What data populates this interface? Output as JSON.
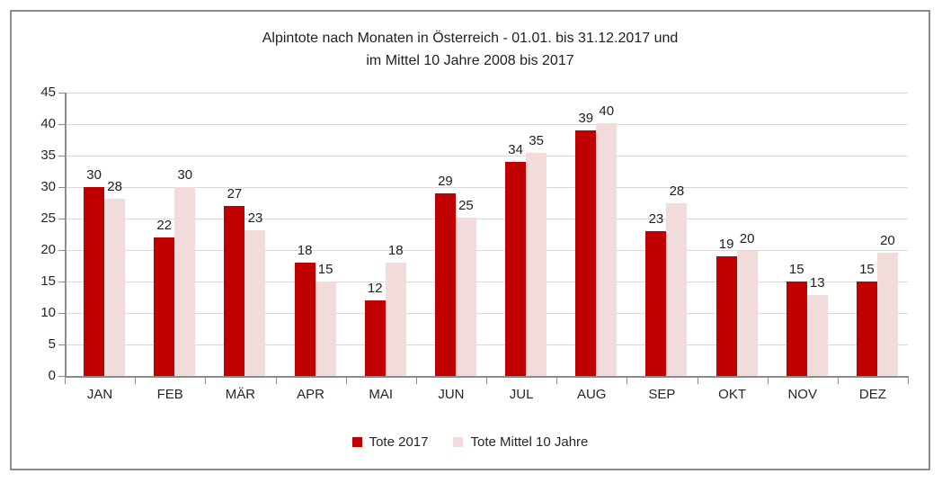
{
  "title": {
    "line1": "Alpintote nach Monaten in Österreich - 01.01. bis 31.12.2017 und",
    "line2": "im Mittel 10 Jahre 2008 bis 2017"
  },
  "colors": {
    "series_red": "#C00000",
    "series_pink": "#F2DCDB",
    "gridline": "#D9D9D9",
    "axis": "#8C8C8C",
    "frame_border": "#8C8C8C",
    "text": "#262626"
  },
  "chart_data": {
    "type": "bar",
    "title": "Alpintote nach Monaten in Österreich - 01.01. bis 31.12.2017 und im Mittel 10 Jahre 2008 bis 2017",
    "categories": [
      "JAN",
      "FEB",
      "MÄR",
      "APR",
      "MAI",
      "JUN",
      "JUL",
      "AUG",
      "SEP",
      "OKT",
      "NOV",
      "DEZ"
    ],
    "series": [
      {
        "name": "Tote 2017",
        "color": "#C00000",
        "values": [
          30,
          22,
          27,
          18,
          12,
          29,
          34,
          39,
          23,
          19,
          15,
          15
        ],
        "labels": [
          "30",
          "22",
          "27",
          "18",
          "12",
          "29",
          "34",
          "39",
          "23",
          "19",
          "15",
          "15"
        ]
      },
      {
        "name": "Tote Mittel 10 Jahre",
        "color": "#F2DCDB",
        "values": [
          28,
          30,
          23,
          15,
          18,
          25,
          35,
          40,
          28,
          20,
          13,
          20
        ],
        "values_drawn": [
          28.2,
          30,
          23.1,
          15,
          18,
          25.2,
          35.4,
          40.1,
          27.5,
          19.9,
          12.9,
          19.6
        ],
        "labels": [
          "28",
          "30",
          "23",
          "15",
          "18",
          "25",
          "35",
          "40",
          "28",
          "20",
          "13",
          "20"
        ]
      }
    ],
    "xlabel": "",
    "ylabel": "",
    "ylim": [
      0,
      45
    ],
    "ytick_step": 5,
    "yticks": [
      0,
      5,
      10,
      15,
      20,
      25,
      30,
      35,
      40,
      45
    ],
    "grid": true,
    "legend_position": "bottom"
  }
}
